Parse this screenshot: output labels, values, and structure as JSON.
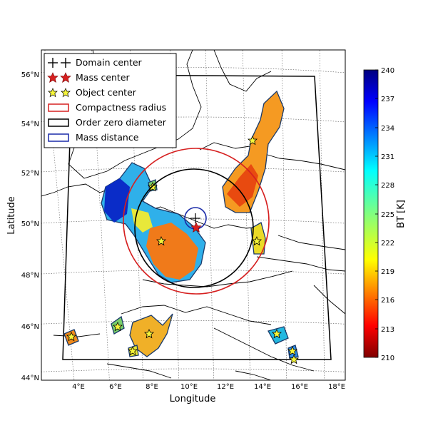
{
  "map": {
    "xlabel": "Longitude",
    "ylabel": "Latitude",
    "lat_ticks": [
      "44°N",
      "46°N",
      "48°N",
      "50°N",
      "52°N",
      "54°N",
      "56°N"
    ],
    "lon_ticks": [
      "4°E",
      "6°E",
      "8°E",
      "10°E",
      "12°E",
      "14°E",
      "16°E",
      "18°E"
    ]
  },
  "legend": {
    "items": [
      {
        "label": "Domain center",
        "marker": "plus",
        "color": "#000000"
      },
      {
        "label": "Mass center",
        "marker": "star",
        "color": "#d62020"
      },
      {
        "label": "Object center",
        "marker": "star",
        "color": "#f5f53a"
      },
      {
        "label": "Compactness radius",
        "marker": "circle",
        "color": "#d62020"
      },
      {
        "label": "Order zero diameter",
        "marker": "circle",
        "color": "#000000"
      },
      {
        "label": "Mass distance",
        "marker": "circle",
        "color": "#1a2aa8"
      }
    ]
  },
  "colorbar": {
    "label": "BT [K]",
    "min": 210,
    "max": 240,
    "ticks": [
      "210",
      "213",
      "216",
      "219",
      "222",
      "225",
      "228",
      "231",
      "234",
      "237",
      "240"
    ],
    "colormap": "jet_r"
  }
}
